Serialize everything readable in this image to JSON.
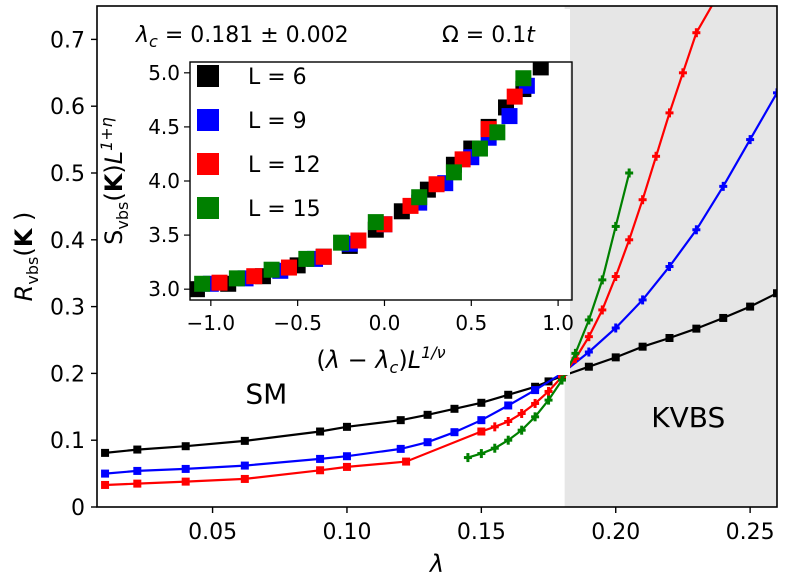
{
  "chart_data": [
    {
      "type": "line",
      "xlabel": "λ",
      "ylabel": "R_vbs(K)",
      "xlim": [
        0.007,
        0.26
      ],
      "ylim": [
        0,
        0.75
      ],
      "xticks": [
        0.05,
        0.1,
        0.15,
        0.2,
        0.25
      ],
      "xtick_labels": [
        "0.05",
        "0.10",
        "0.15",
        "0.20",
        "0.25"
      ],
      "yticks": [
        0,
        0.1,
        0.2,
        0.3,
        0.4,
        0.5,
        0.6,
        0.7
      ],
      "ytick_labels": [
        "0",
        "0.1",
        "0.2",
        "0.3",
        "0.4",
        "0.5",
        "0.6",
        "0.7"
      ],
      "shaded_region": {
        "from": 0.181,
        "to": 0.26,
        "color": "#e6e6e6"
      },
      "region_labels": [
        {
          "text": "SM",
          "x": 0.07,
          "y": 0.155
        },
        {
          "text": "KVBS",
          "x": 0.227,
          "y": 0.12
        }
      ],
      "series": [
        {
          "name": "L = 6",
          "color": "#000000",
          "x": [
            0.01,
            0.022,
            0.04,
            0.062,
            0.09,
            0.1,
            0.12,
            0.13,
            0.14,
            0.15,
            0.16,
            0.17,
            0.175,
            0.18,
            0.19,
            0.2,
            0.21,
            0.22,
            0.23,
            0.24,
            0.25,
            0.26
          ],
          "y": [
            0.081,
            0.086,
            0.091,
            0.099,
            0.113,
            0.12,
            0.13,
            0.138,
            0.147,
            0.156,
            0.168,
            0.18,
            0.188,
            0.196,
            0.21,
            0.224,
            0.24,
            0.253,
            0.267,
            0.283,
            0.3,
            0.32
          ]
        },
        {
          "name": "L = 9",
          "color": "#0000ff",
          "x": [
            0.01,
            0.022,
            0.04,
            0.062,
            0.09,
            0.1,
            0.12,
            0.13,
            0.14,
            0.15,
            0.16,
            0.17,
            0.18,
            0.19,
            0.2,
            0.21,
            0.22,
            0.23,
            0.24,
            0.25,
            0.26
          ],
          "y": [
            0.05,
            0.054,
            0.057,
            0.062,
            0.072,
            0.076,
            0.087,
            0.097,
            0.112,
            0.13,
            0.152,
            0.175,
            0.2,
            0.232,
            0.268,
            0.31,
            0.36,
            0.415,
            0.48,
            0.55,
            0.62
          ]
        },
        {
          "name": "L = 12",
          "color": "#ff0000",
          "x": [
            0.01,
            0.022,
            0.04,
            0.062,
            0.09,
            0.1,
            0.122,
            0.15,
            0.155,
            0.16,
            0.165,
            0.17,
            0.175,
            0.18,
            0.185,
            0.19,
            0.195,
            0.2,
            0.205,
            0.21,
            0.215,
            0.22,
            0.225,
            0.23,
            0.24
          ],
          "y": [
            0.033,
            0.035,
            0.038,
            0.042,
            0.055,
            0.06,
            0.068,
            0.113,
            0.12,
            0.128,
            0.14,
            0.155,
            0.173,
            0.195,
            0.222,
            0.255,
            0.295,
            0.345,
            0.4,
            0.46,
            0.525,
            0.59,
            0.65,
            0.71,
            0.78
          ]
        },
        {
          "name": "L = 15",
          "color": "#008000",
          "x": [
            0.145,
            0.15,
            0.155,
            0.16,
            0.165,
            0.17,
            0.175,
            0.18,
            0.185,
            0.19,
            0.195,
            0.2,
            0.205
          ],
          "y": [
            0.074,
            0.08,
            0.088,
            0.1,
            0.115,
            0.135,
            0.16,
            0.19,
            0.23,
            0.28,
            0.34,
            0.42,
            0.5
          ]
        }
      ]
    },
    {
      "type": "scatter",
      "xlabel": "(λ − λ_c)L^{1/ν}",
      "ylabel": "S_vbs(K)L^{1+η}",
      "xlim": [
        -1.12,
        1.08
      ],
      "ylim": [
        2.9,
        5.1
      ],
      "xticks": [
        -1.0,
        -0.5,
        0.0,
        0.5,
        1.0
      ],
      "xtick_labels": [
        "−1.0",
        "−0.5",
        "0.0",
        "0.5",
        "1.0"
      ],
      "yticks": [
        3.0,
        3.5,
        4.0,
        4.5,
        5.0
      ],
      "ytick_labels": [
        "3.0",
        "3.5",
        "4.0",
        "4.5",
        "5.0"
      ],
      "annotations": [
        "λc = 0.181 ± 0.002",
        "Ω = 0.1t"
      ],
      "legend_position": "upper-left",
      "series": [
        {
          "name": "L = 6",
          "color": "#000000",
          "x": [
            -1.08,
            -0.9,
            -0.7,
            -0.5,
            -0.35,
            -0.2,
            -0.05,
            0.1,
            0.25,
            0.4,
            0.5,
            0.6,
            0.7,
            0.8,
            0.9
          ],
          "y": [
            3.0,
            3.05,
            3.12,
            3.22,
            3.3,
            3.4,
            3.55,
            3.72,
            3.92,
            4.15,
            4.3,
            4.5,
            4.68,
            4.85,
            5.05
          ]
        },
        {
          "name": "L = 9",
          "color": "#0000ff",
          "x": [
            -1.0,
            -0.8,
            -0.6,
            -0.4,
            -0.2,
            0.0,
            0.2,
            0.35,
            0.5,
            0.6,
            0.72,
            0.82
          ],
          "y": [
            3.05,
            3.1,
            3.17,
            3.28,
            3.42,
            3.6,
            3.8,
            3.98,
            4.22,
            4.4,
            4.6,
            4.88
          ]
        },
        {
          "name": "L = 12",
          "color": "#ff0000",
          "x": [
            -0.95,
            -0.75,
            -0.55,
            -0.35,
            -0.15,
            0.0,
            0.15,
            0.3,
            0.45,
            0.6,
            0.75
          ],
          "y": [
            3.06,
            3.12,
            3.2,
            3.3,
            3.45,
            3.6,
            3.77,
            3.97,
            4.2,
            4.48,
            4.78
          ]
        },
        {
          "name": "L = 15",
          "color": "#008000",
          "x": [
            -1.05,
            -0.85,
            -0.65,
            -0.45,
            -0.25,
            -0.05,
            0.2,
            0.4,
            0.55,
            0.65,
            0.8
          ],
          "y": [
            3.05,
            3.1,
            3.18,
            3.28,
            3.43,
            3.62,
            3.85,
            4.08,
            4.3,
            4.45,
            4.95
          ]
        }
      ]
    }
  ],
  "labels": {
    "region_sm": "SM",
    "region_kvbs": "KVBS",
    "main_xlabel": "λ",
    "inset_annotation_lambda": "λc = 0.181 ± 0.002",
    "inset_annotation_omega": "Ω = 0.1t"
  }
}
